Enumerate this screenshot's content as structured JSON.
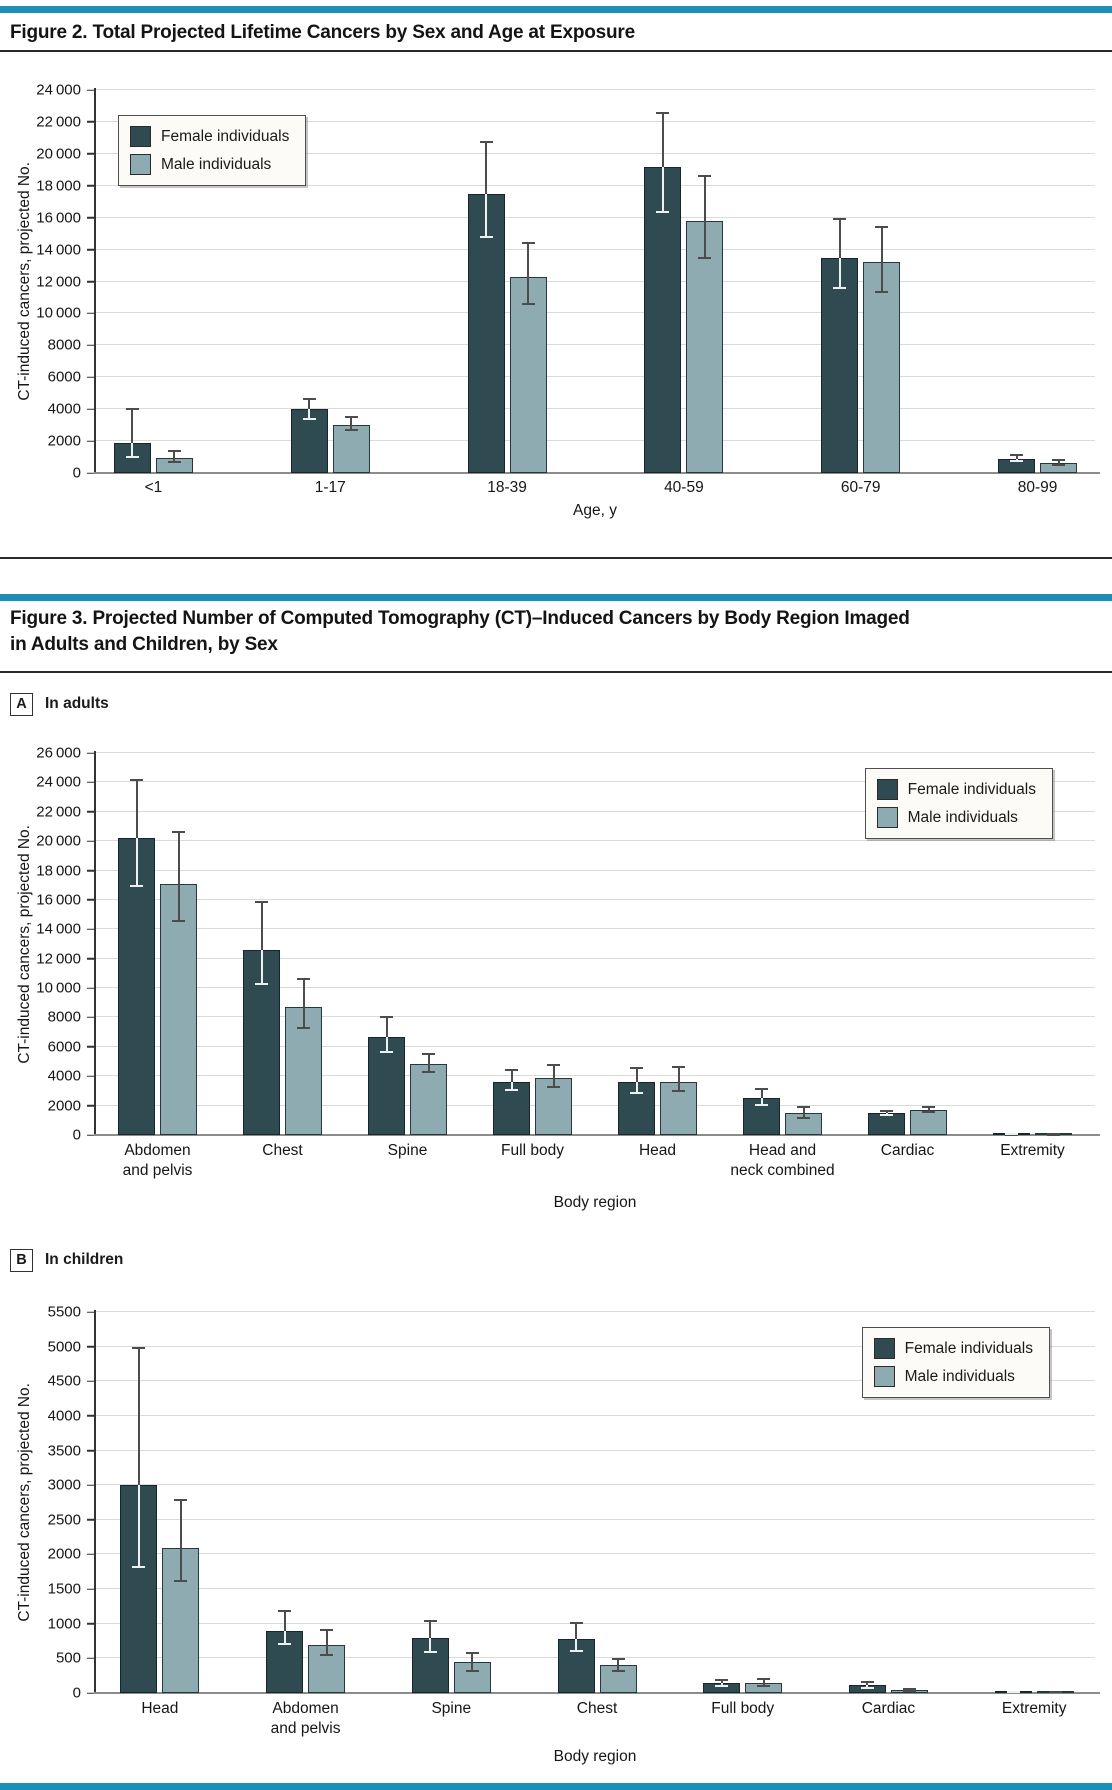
{
  "page": {
    "accent_color": "#1d8eb5",
    "background": "#ffffff"
  },
  "figure2": {
    "title": "Figure 2. Total Projected Lifetime Cancers by Sex and Age at Exposure"
  },
  "figure3": {
    "title_line1": "Figure 3. Projected Number of Computed Tomography (CT)–Induced Cancers by Body Region Imaged",
    "title_line2": "in Adults and Children, by Sex",
    "panel_a_label": "A",
    "panel_a_caption": "In adults",
    "panel_b_label": "B",
    "panel_b_caption": "In children"
  },
  "legend": {
    "female_label": "Female individuals",
    "male_label": "Male individuals",
    "female_color": "#304a51",
    "male_color": "#8fabb2"
  },
  "chart_data": [
    {
      "id": "figure2",
      "type": "bar",
      "title": "Total Projected Lifetime Cancers by Sex and Age at Exposure",
      "ylabel": "CT-induced cancers, projected No.",
      "xlabel": "Age, y",
      "ylim": [
        0,
        24000
      ],
      "ystep": 2000,
      "grid": true,
      "legend_position": "top-left",
      "categories": [
        "<1",
        "1-17",
        "18-39",
        "40-59",
        "60-79",
        "80-99"
      ],
      "categories_display": [
        "<1",
        "1-17",
        "18-39",
        "40-59",
        "60-79",
        "80-99"
      ],
      "series": [
        {
          "name": "Female individuals",
          "values": [
            1900,
            4000,
            17500,
            19200,
            13500,
            900
          ],
          "ci_low": [
            950,
            3300,
            14700,
            16300,
            11500,
            700
          ],
          "ci_high": [
            4050,
            4700,
            20800,
            22600,
            16000,
            1200
          ]
        },
        {
          "name": "Male individuals",
          "values": [
            950,
            3000,
            12300,
            15800,
            13200,
            650
          ],
          "ci_low": [
            600,
            2650,
            10500,
            13400,
            11300,
            450
          ],
          "ci_high": [
            1450,
            3600,
            14500,
            18700,
            15500,
            900
          ]
        }
      ]
    },
    {
      "id": "figure3a",
      "type": "bar",
      "panel": "A",
      "title": "In adults",
      "ylabel": "CT-induced cancers, projected No.",
      "xlabel": "Body region",
      "ylim": [
        0,
        26000
      ],
      "ystep": 2000,
      "grid": true,
      "legend_position": "top-right",
      "categories": [
        "Abdomen and pelvis",
        "Chest",
        "Spine",
        "Full body",
        "Head",
        "Head and neck combined",
        "Cardiac",
        "Extremity"
      ],
      "categories_display": [
        "Abdomen\nand pelvis",
        "Chest",
        "Spine",
        "Full body",
        "Head",
        "Head and\nneck combined",
        "Cardiac",
        "Extremity"
      ],
      "series": [
        {
          "name": "Female individuals",
          "values": [
            20200,
            12600,
            6700,
            3600,
            3600,
            2500,
            1500,
            60
          ],
          "ci_low": [
            16900,
            10200,
            5600,
            3000,
            2800,
            2000,
            1300,
            20
          ],
          "ci_high": [
            24200,
            15900,
            8100,
            4500,
            4600,
            3200,
            1700,
            100
          ]
        },
        {
          "name": "Male individuals",
          "values": [
            17100,
            8700,
            4800,
            3900,
            3600,
            1500,
            1700,
            60
          ],
          "ci_low": [
            14500,
            7200,
            4200,
            3200,
            2900,
            1100,
            1500,
            20
          ],
          "ci_high": [
            20700,
            10700,
            5600,
            4800,
            4700,
            2000,
            2000,
            100
          ]
        }
      ]
    },
    {
      "id": "figure3b",
      "type": "bar",
      "panel": "B",
      "title": "In children",
      "ylabel": "CT-induced cancers, projected No.",
      "xlabel": "Body region",
      "ylim": [
        0,
        5500
      ],
      "ystep": 500,
      "grid": true,
      "legend_position": "top-right",
      "categories": [
        "Head",
        "Abdomen and pelvis",
        "Spine",
        "Chest",
        "Full body",
        "Cardiac",
        "Extremity"
      ],
      "categories_display": [
        "Head",
        "Abdomen\nand pelvis",
        "Spine",
        "Chest",
        "Full body",
        "Cardiac",
        "Extremity"
      ],
      "series": [
        {
          "name": "Female individuals",
          "values": [
            3000,
            900,
            800,
            780,
            150,
            120,
            15
          ],
          "ci_low": [
            1800,
            700,
            580,
            590,
            90,
            60,
            5
          ],
          "ci_high": [
            5000,
            1200,
            1050,
            1030,
            200,
            180,
            25
          ]
        },
        {
          "name": "Male individuals",
          "values": [
            2100,
            700,
            450,
            400,
            150,
            40,
            15
          ],
          "ci_low": [
            1600,
            530,
            300,
            300,
            90,
            20,
            5
          ],
          "ci_high": [
            2800,
            930,
            590,
            500,
            220,
            70,
            25
          ]
        }
      ]
    }
  ]
}
